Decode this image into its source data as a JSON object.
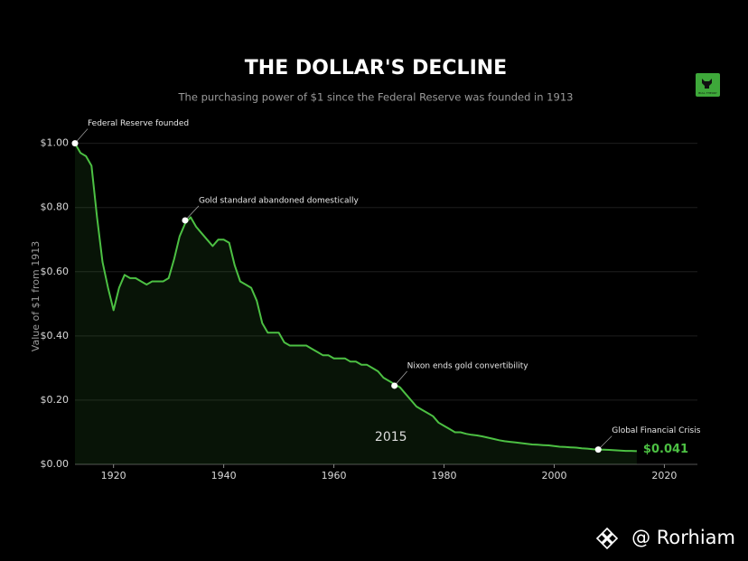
{
  "chart_data": {
    "type": "area-line",
    "title": "THE DOLLAR'S DECLINE",
    "subtitle": "The purchasing power of $1 since the Federal Reserve was founded in 1913",
    "y_label": "Value of $1 from 1913",
    "x": [
      1913,
      1914,
      1915,
      1916,
      1917,
      1918,
      1919,
      1920,
      1921,
      1922,
      1923,
      1924,
      1925,
      1926,
      1927,
      1928,
      1929,
      1930,
      1931,
      1932,
      1933,
      1934,
      1935,
      1936,
      1937,
      1938,
      1939,
      1940,
      1941,
      1942,
      1943,
      1944,
      1945,
      1946,
      1947,
      1948,
      1949,
      1950,
      1951,
      1952,
      1953,
      1954,
      1955,
      1956,
      1957,
      1958,
      1959,
      1960,
      1961,
      1962,
      1963,
      1964,
      1965,
      1966,
      1967,
      1968,
      1969,
      1970,
      1971,
      1972,
      1973,
      1974,
      1975,
      1976,
      1977,
      1978,
      1979,
      1980,
      1981,
      1982,
      1983,
      1984,
      1985,
      1986,
      1987,
      1988,
      1989,
      1990,
      1991,
      1992,
      1993,
      1994,
      1995,
      1996,
      1997,
      1998,
      1999,
      2000,
      2001,
      2002,
      2003,
      2004,
      2005,
      2006,
      2007,
      2008,
      2009,
      2010,
      2011,
      2012,
      2013,
      2014,
      2015
    ],
    "series": [
      {
        "name": "Value of $1",
        "color": "#4cc043",
        "values": [
          1.0,
          0.97,
          0.96,
          0.93,
          0.77,
          0.63,
          0.55,
          0.48,
          0.55,
          0.59,
          0.58,
          0.58,
          0.57,
          0.56,
          0.57,
          0.57,
          0.57,
          0.58,
          0.64,
          0.71,
          0.75,
          0.77,
          0.74,
          0.72,
          0.7,
          0.68,
          0.7,
          0.7,
          0.69,
          0.62,
          0.57,
          0.56,
          0.55,
          0.51,
          0.44,
          0.41,
          0.41,
          0.41,
          0.38,
          0.37,
          0.37,
          0.37,
          0.37,
          0.36,
          0.35,
          0.34,
          0.34,
          0.33,
          0.33,
          0.33,
          0.32,
          0.32,
          0.31,
          0.31,
          0.3,
          0.29,
          0.27,
          0.26,
          0.25,
          0.24,
          0.22,
          0.2,
          0.18,
          0.17,
          0.16,
          0.15,
          0.13,
          0.12,
          0.11,
          0.1,
          0.1,
          0.095,
          0.092,
          0.09,
          0.087,
          0.083,
          0.079,
          0.075,
          0.072,
          0.07,
          0.068,
          0.066,
          0.064,
          0.062,
          0.061,
          0.06,
          0.059,
          0.057,
          0.055,
          0.054,
          0.053,
          0.052,
          0.05,
          0.049,
          0.047,
          0.046,
          0.046,
          0.045,
          0.044,
          0.043,
          0.042,
          0.042,
          0.041
        ]
      }
    ],
    "xlim": [
      1913,
      2026
    ],
    "ylim": [
      0,
      1.03
    ],
    "xticks": [
      1920,
      1940,
      1960,
      1980,
      2000,
      2020
    ],
    "yticks": [
      {
        "value": 0,
        "label": "$0.00"
      },
      {
        "value": 0.2,
        "label": "$0.20"
      },
      {
        "value": 0.4,
        "label": "$0.40"
      },
      {
        "value": 0.6,
        "label": "$0.60"
      },
      {
        "value": 0.8,
        "label": "$0.80"
      },
      {
        "value": 1.0,
        "label": "$1.00"
      }
    ],
    "grid": true,
    "annotations": [
      {
        "text": "Federal Reserve founded",
        "x": 1913,
        "y": 1.0
      },
      {
        "text": "Gold standard abandoned domestically",
        "x": 1933,
        "y": 0.76
      },
      {
        "text": "Nixon ends gold convertibility",
        "x": 1971,
        "y": 0.245
      },
      {
        "text": "Global Financial Crisis",
        "x": 2008,
        "y": 0.046
      }
    ],
    "year_label": 2015,
    "final_label": "$0.041",
    "logo_text": "BULL THEORY",
    "watermark": "@ Rorhiam"
  }
}
